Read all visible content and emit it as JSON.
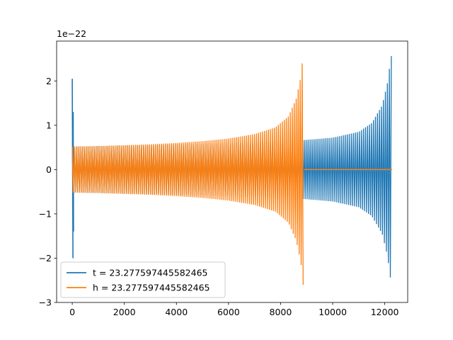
{
  "chart_data": {
    "type": "line",
    "title": "",
    "xlabel": "",
    "ylabel": "",
    "xlim": [
      -600,
      12880
    ],
    "ylim": [
      -3.0,
      2.9
    ],
    "y_offset_label": "1e−22",
    "xticks": [
      0,
      2000,
      4000,
      6000,
      8000,
      10000,
      12000
    ],
    "xtick_labels": [
      "0",
      "2000",
      "4000",
      "6000",
      "8000",
      "10000",
      "12000"
    ],
    "yticks": [
      -3,
      -2,
      -1,
      0,
      1,
      2
    ],
    "ytick_labels": [
      "−3",
      "−2",
      "−1",
      "0",
      "1",
      "2"
    ],
    "grid": false,
    "legend_position": "lower-left",
    "series": [
      {
        "name": "t = 23.277597445582465",
        "color": "#1f77b4",
        "x_start": 0,
        "x_end": 12288,
        "envelope": [
          [
            0,
            0.52
          ],
          [
            1000,
            0.53
          ],
          [
            2000,
            0.54
          ],
          [
            3000,
            0.55
          ],
          [
            4000,
            0.57
          ],
          [
            5000,
            0.58
          ],
          [
            6000,
            0.6
          ],
          [
            7000,
            0.62
          ],
          [
            8000,
            0.64
          ],
          [
            9000,
            0.67
          ],
          [
            10000,
            0.72
          ],
          [
            11000,
            0.85
          ],
          [
            11500,
            1.05
          ],
          [
            11900,
            1.45
          ],
          [
            12100,
            1.95
          ],
          [
            12240,
            2.55
          ],
          [
            12288,
            2.6
          ]
        ],
        "spike_at_start": [
          2.05,
          -2.0
        ]
      },
      {
        "name": "h = 23.277597445582465",
        "color": "#ff7f0e",
        "x_start": 0,
        "x_end": 8900,
        "envelope": [
          [
            0,
            0.52
          ],
          [
            1000,
            0.53
          ],
          [
            2000,
            0.55
          ],
          [
            3000,
            0.57
          ],
          [
            4000,
            0.6
          ],
          [
            5000,
            0.64
          ],
          [
            6000,
            0.7
          ],
          [
            7000,
            0.8
          ],
          [
            7800,
            0.95
          ],
          [
            8300,
            1.2
          ],
          [
            8600,
            1.6
          ],
          [
            8780,
            2.1
          ],
          [
            8860,
            2.6
          ],
          [
            8900,
            2.6
          ]
        ],
        "flat_after": [
          8900,
          12288,
          0
        ]
      }
    ]
  }
}
